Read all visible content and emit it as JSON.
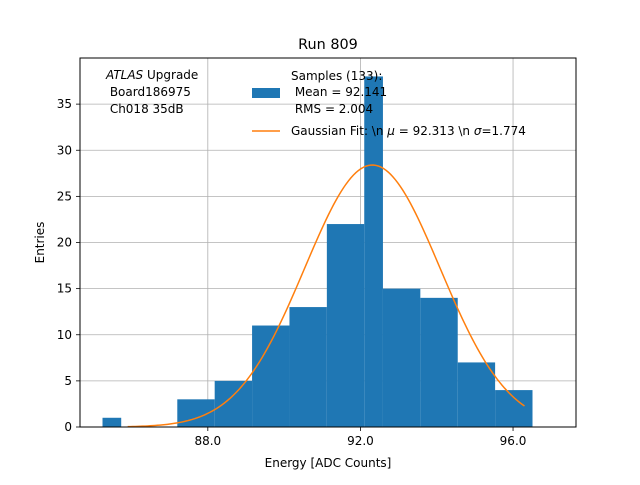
{
  "chart_data": {
    "type": "bar",
    "title": "Run 809",
    "xlabel": "Energy [ADC Counts]",
    "ylabel": "Entries",
    "xlim": [
      84.65,
      97.65
    ],
    "ylim": [
      0,
      40
    ],
    "grid": true,
    "xticks": [
      88,
      92,
      96
    ],
    "xtick_labels": [
      "88.0",
      "92.0",
      "96.0"
    ],
    "yticks": [
      0,
      5,
      10,
      15,
      20,
      25,
      30,
      35
    ],
    "yticks_labels": [
      "0",
      "5",
      "10",
      "15",
      "20",
      "25",
      "30",
      "35"
    ],
    "histogram": {
      "bin_edges": [
        85.24,
        85.73,
        86.22,
        86.71,
        87.2,
        87.69,
        88.18,
        88.67,
        89.16,
        89.65,
        90.14,
        90.63,
        91.12,
        91.61,
        92.1,
        92.59,
        93.08,
        93.57,
        94.06,
        94.55,
        95.04,
        95.53,
        96.02,
        96.51,
        97.0
      ],
      "bin_edges_display": [
        85.24,
        85.73,
        87.2,
        88.18,
        89.16,
        90.14,
        91.12,
        92.1,
        92.59,
        93.57,
        94.55,
        95.53,
        96.51,
        97.0
      ],
      "bars": [
        {
          "x0": 85.24,
          "x1": 85.73,
          "count": 1
        },
        {
          "x0": 87.2,
          "x1": 88.18,
          "count": 3
        },
        {
          "x0": 88.18,
          "x1": 89.16,
          "count": 5
        },
        {
          "x0": 89.16,
          "x1": 90.14,
          "count": 11
        },
        {
          "x0": 90.14,
          "x1": 91.12,
          "count": 13
        },
        {
          "x0": 91.12,
          "x1": 92.1,
          "count": 22
        },
        {
          "x0": 92.1,
          "x1": 92.59,
          "count": 38
        },
        {
          "x0": 92.59,
          "x1": 93.57,
          "count": 15
        },
        {
          "x0": 93.57,
          "x1": 94.55,
          "count": 14
        },
        {
          "x0": 94.55,
          "x1": 95.53,
          "count": 7
        },
        {
          "x0": 95.53,
          "x1": 96.51,
          "count": 4
        }
      ],
      "color": "#1f77b4"
    },
    "fit": {
      "mu": 92.313,
      "sigma": 1.774,
      "amplitude": 28.4,
      "x_range": [
        85.9,
        96.3
      ],
      "color": "#ff7f0e"
    },
    "legend": {
      "position": "top-center",
      "hist_lines": [
        "Samples (133):",
        " Mean = 92.141",
        " RMS = 2.004"
      ],
      "fit_label_prefix": "Gaussian Fit: \\n ",
      "fit_label_mu": "μ",
      "fit_label_mid": " = 92.313 \\n ",
      "fit_label_sigma": "σ",
      "fit_label_suffix": "=1.774"
    },
    "annotation": {
      "atlas": "ATLAS",
      "upgrade": " Upgrade",
      "line2": " Board186975",
      "line3": " Ch018 35dB"
    }
  }
}
